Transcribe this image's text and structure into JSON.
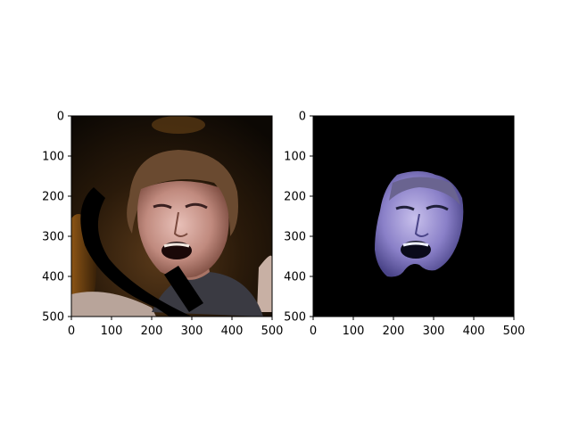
{
  "figure": {
    "background": "#ffffff",
    "panels": [
      {
        "name": "original-image",
        "content": "photo of a man's face with black occluding strokes",
        "x_ticks": [
          "0",
          "100",
          "200",
          "300",
          "400",
          "500"
        ],
        "y_ticks": [
          "0",
          "100",
          "200",
          "300",
          "400",
          "500"
        ],
        "xlim": [
          0,
          500
        ],
        "ylim": [
          500,
          0
        ]
      },
      {
        "name": "masked-face-image",
        "content": "segmented face on black background",
        "x_ticks": [
          "0",
          "100",
          "200",
          "300",
          "400",
          "500"
        ],
        "y_ticks": [
          "0",
          "100",
          "200",
          "300",
          "400",
          "500"
        ],
        "xlim": [
          0,
          500
        ],
        "ylim": [
          500,
          0
        ]
      }
    ]
  }
}
